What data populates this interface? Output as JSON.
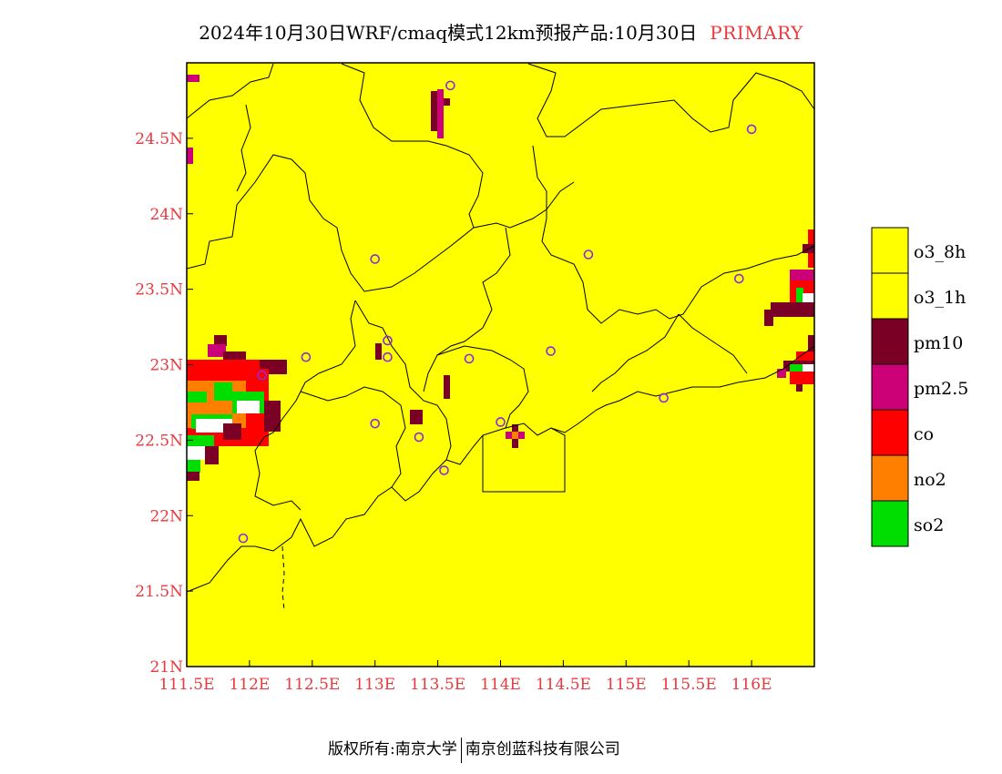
{
  "title": {
    "main": "2024年10月30日WRF/cmaq模式12km预报产品:10月30日",
    "tag": "PRIMARY"
  },
  "axes": {
    "x_ticks": [
      "111.5E",
      "112E",
      "112.5E",
      "113E",
      "113.5E",
      "114E",
      "114.5E",
      "115E",
      "115.5E",
      "116E"
    ],
    "y_ticks": [
      "24.5N",
      "24N",
      "23.5N",
      "23N",
      "22.5N",
      "22N",
      "21.5N",
      "21N"
    ]
  },
  "legend": [
    {
      "label": "o3_8h",
      "color": "#ffff00"
    },
    {
      "label": "o3_1h",
      "color": "#ffff00"
    },
    {
      "label": "pm10",
      "color": "#7a0025"
    },
    {
      "label": "pm2.5",
      "color": "#cc0077"
    },
    {
      "label": "co",
      "color": "#ff0000"
    },
    {
      "label": "no2",
      "color": "#ff8000"
    },
    {
      "label": "so2",
      "color": "#00dd00"
    }
  ],
  "footer": {
    "left": "版权所有:南京大学",
    "right": "南京创蓝科技有限公司"
  },
  "colors": {
    "background_pollutant": "#ffff00",
    "station_marker": "#8a2be2",
    "axis_text": "#e8393e"
  },
  "stations_lonlat": [
    [
      113.6,
      24.85
    ],
    [
      116.0,
      24.56
    ],
    [
      113.0,
      23.7
    ],
    [
      114.7,
      23.73
    ],
    [
      112.45,
      23.05
    ],
    [
      113.1,
      23.16
    ],
    [
      113.1,
      23.05
    ],
    [
      113.75,
      23.04
    ],
    [
      114.4,
      23.09
    ],
    [
      112.1,
      22.93
    ],
    [
      113.0,
      22.61
    ],
    [
      113.35,
      22.52
    ],
    [
      113.55,
      22.3
    ],
    [
      114.0,
      22.62
    ],
    [
      115.3,
      22.78
    ],
    [
      111.95,
      21.85
    ],
    [
      115.9,
      23.57
    ]
  ]
}
